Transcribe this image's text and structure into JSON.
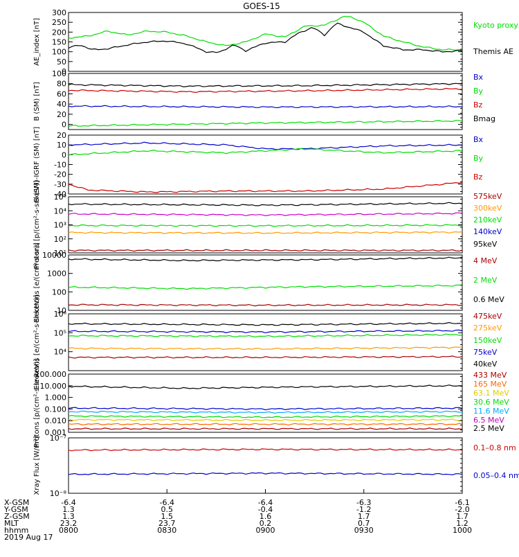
{
  "title": "GOES-15",
  "colors": {
    "black": "#000000",
    "green": "#00dd00",
    "red": "#cc0000",
    "blue": "#0000cc",
    "orange": "#ff9900",
    "yellow": "#ddcc00",
    "cyan": "#00aaff",
    "magenta": "#bb00bb",
    "darkred": "#aa0000"
  },
  "chart_data": [
    {
      "type": "line",
      "ylabel": "AE_index [nT]",
      "ylim": [
        0,
        300
      ],
      "yticks": [
        "0",
        "50",
        "100",
        "150",
        "200",
        "250",
        "300"
      ],
      "series": [
        {
          "name": "Kyoto proxy AE",
          "color": "#00dd00",
          "x": [
            0,
            0.05,
            0.1,
            0.15,
            0.2,
            0.25,
            0.3,
            0.35,
            0.4,
            0.45,
            0.5,
            0.55,
            0.6,
            0.65,
            0.7,
            0.72,
            0.75,
            0.8,
            0.85,
            0.9,
            0.95,
            1.0
          ],
          "values": [
            170,
            180,
            205,
            185,
            205,
            200,
            180,
            150,
            130,
            150,
            190,
            175,
            230,
            235,
            280,
            275,
            250,
            180,
            150,
            125,
            110,
            110
          ]
        },
        {
          "name": "Themis AE",
          "color": "#000000",
          "x": [
            0,
            0.03,
            0.06,
            0.1,
            0.15,
            0.2,
            0.25,
            0.3,
            0.35,
            0.38,
            0.42,
            0.45,
            0.5,
            0.55,
            0.58,
            0.62,
            0.65,
            0.68,
            0.72,
            0.75,
            0.8,
            0.85,
            0.9,
            0.95,
            1.0
          ],
          "values": [
            120,
            135,
            110,
            115,
            135,
            150,
            155,
            140,
            100,
            95,
            135,
            105,
            145,
            150,
            190,
            225,
            185,
            245,
            220,
            200,
            130,
            110,
            110,
            100,
            105
          ]
        }
      ]
    },
    {
      "type": "line",
      "ylabel": "B (SM) [nT]",
      "ylim": [
        -10,
        100
      ],
      "yticks": [
        "0",
        "20",
        "40",
        "60",
        "80",
        "100"
      ],
      "series": [
        {
          "name": "Bx",
          "color": "#0000cc",
          "x": [
            0,
            0.5,
            1.0
          ],
          "values": [
            36,
            34,
            35
          ]
        },
        {
          "name": "By",
          "color": "#00dd00",
          "x": [
            0,
            0.5,
            1.0
          ],
          "values": [
            -3,
            3,
            7
          ]
        },
        {
          "name": "Bz",
          "color": "#cc0000",
          "x": [
            0,
            0.3,
            0.6,
            1.0
          ],
          "values": [
            67,
            64,
            66,
            70
          ]
        },
        {
          "name": "Bmag",
          "color": "#000000",
          "x": [
            0,
            0.3,
            0.6,
            1.0
          ],
          "values": [
            78,
            75,
            76,
            80
          ]
        }
      ]
    },
    {
      "type": "line",
      "ylabel": "B (SM)-IGRF (SM) [nT]",
      "ylim": [
        -40,
        20
      ],
      "yticks": [
        "-40",
        "-30",
        "-20",
        "-10",
        "0",
        "10",
        "20"
      ],
      "series": [
        {
          "name": "Bx",
          "color": "#0000cc",
          "x": [
            0,
            0.2,
            0.4,
            0.5,
            0.6,
            0.8,
            1.0
          ],
          "values": [
            10,
            12,
            10,
            6,
            6,
            9,
            10
          ]
        },
        {
          "name": "By",
          "color": "#00dd00",
          "x": [
            0,
            0.2,
            0.4,
            0.6,
            0.8,
            1.0
          ],
          "values": [
            0,
            4,
            2,
            6,
            2,
            4
          ]
        },
        {
          "name": "Bz",
          "color": "#cc0000",
          "x": [
            0,
            0.05,
            0.2,
            0.4,
            0.6,
            0.8,
            0.95,
            1.0
          ],
          "values": [
            -30,
            -36,
            -38,
            -37,
            -37,
            -35,
            -30,
            -28
          ]
        }
      ]
    },
    {
      "type": "line",
      "ylabel": "Protons [p/(cm²-s-sr-keV)]",
      "ylog": true,
      "ylim": [
        10,
        100000
      ],
      "yticks": [
        "10¹",
        "10²",
        "10³",
        "10⁴",
        "10⁵"
      ],
      "series": [
        {
          "name": "575keV",
          "color": "#000000",
          "x": [
            0,
            0.5,
            1.0
          ],
          "values": [
            30000,
            25000,
            35000
          ]
        },
        {
          "name": "300keV",
          "color": "#cc00cc",
          "x": [
            0,
            0.5,
            1.0
          ],
          "values": [
            6000,
            5000,
            6500
          ]
        },
        {
          "name": "210keV",
          "color": "#00dd00",
          "x": [
            0,
            0.5,
            1.0
          ],
          "values": [
            900,
            850,
            950
          ]
        },
        {
          "name": "140keV",
          "color": "#ff9900",
          "x": [
            0,
            0.5,
            1.0
          ],
          "values": [
            280,
            260,
            300
          ]
        },
        {
          "name": "95keV",
          "color": "#aa0000",
          "x": [
            0,
            0.5,
            1.0
          ],
          "values": [
            15,
            15,
            15
          ]
        }
      ]
    },
    {
      "type": "line",
      "ylabel": "Electrons [e/(cm²-s-sr)]",
      "ylog": true,
      "ylim": [
        10,
        10000
      ],
      "yticks": [
        "10",
        "100",
        "1000",
        "10000"
      ],
      "series": [
        {
          "name": "0.6 MeV",
          "color": "#000000",
          "x": [
            0,
            0.3,
            0.6,
            1.0
          ],
          "values": [
            6000,
            5000,
            5500,
            7000
          ]
        },
        {
          "name": "2 MeV",
          "color": "#00dd00",
          "x": [
            0,
            0.3,
            0.6,
            1.0
          ],
          "values": [
            180,
            150,
            190,
            220
          ]
        },
        {
          "name": "4 MeV",
          "color": "#aa0000",
          "x": [
            0,
            0.5,
            1.0
          ],
          "values": [
            20,
            19,
            20
          ]
        }
      ]
    },
    {
      "type": "line",
      "ylabel": "Electrons [e/(cm²-s-sr-keV)]",
      "ylog": true,
      "ylim": [
        1000,
        1000000
      ],
      "yticks": [
        "10⁴",
        "10⁵",
        "10⁶"
      ],
      "series": [
        {
          "name": "40keV",
          "color": "#000000",
          "x": [
            0,
            0.5,
            1.0
          ],
          "values": [
            300000,
            260000,
            320000
          ]
        },
        {
          "name": "75keV",
          "color": "#0000cc",
          "x": [
            0,
            0.5,
            1.0
          ],
          "values": [
            120000,
            110000,
            130000
          ]
        },
        {
          "name": "150keV",
          "color": "#00dd00",
          "x": [
            0,
            0.5,
            1.0
          ],
          "values": [
            70000,
            65000,
            80000
          ]
        },
        {
          "name": "275keV",
          "color": "#ff9900",
          "x": [
            0,
            0.5,
            1.0
          ],
          "values": [
            15000,
            14000,
            17000
          ]
        },
        {
          "name": "475keV",
          "color": "#aa0000",
          "x": [
            0,
            0.5,
            1.0
          ],
          "values": [
            5000,
            5000,
            5500
          ]
        }
      ]
    },
    {
      "type": "line",
      "ylabel": "Protons [p/(cm²-s-sr-keV)]",
      "ylog": true,
      "ylim": [
        0.001,
        100
      ],
      "yticks": [
        "0.001",
        "0.010",
        "0.100",
        "1.000",
        "10.000",
        "100.000"
      ],
      "series": [
        {
          "name": "2.5 MeV",
          "color": "#000000",
          "x": [
            0,
            0.3,
            0.6,
            1.0
          ],
          "values": [
            9,
            6,
            8,
            10
          ]
        },
        {
          "name": "6.5 MeV",
          "color": "#0000cc",
          "x": [
            0,
            0.5,
            1.0
          ],
          "values": [
            0.12,
            0.1,
            0.12
          ]
        },
        {
          "name": "11.6 MeV",
          "color": "#00aaff",
          "x": [
            0,
            0.5,
            1.0
          ],
          "values": [
            0.06,
            0.05,
            0.06
          ]
        },
        {
          "name": "30.6 MeV",
          "color": "#00dd00",
          "x": [
            0,
            0.5,
            1.0
          ],
          "values": [
            0.025,
            0.02,
            0.025
          ]
        },
        {
          "name": "63.1 MeV",
          "color": "#ddcc00",
          "x": [
            0,
            0.5,
            1.0
          ],
          "values": [
            0.012,
            0.011,
            0.012
          ]
        },
        {
          "name": "165 MeV",
          "color": "#ff6600",
          "x": [
            0,
            0.5,
            1.0
          ],
          "values": [
            0.005,
            0.005,
            0.005
          ]
        },
        {
          "name": "433 MeV",
          "color": "#aa0000",
          "x": [
            0,
            0.5,
            1.0
          ],
          "values": [
            0.002,
            0.002,
            0.002
          ]
        }
      ]
    },
    {
      "type": "line",
      "ylabel": "Xray Flux [W/m²]",
      "ylog": true,
      "ylim": [
        1e-08,
        1e-07
      ],
      "yticks": [
        "10⁻⁸",
        "10⁻⁷"
      ],
      "series": [
        {
          "name": "0.1–0.8 nm",
          "color": "#cc0000",
          "x": [
            0,
            0.5,
            1.0
          ],
          "values": [
            6e-08,
            6.2e-08,
            6.1e-08
          ]
        },
        {
          "name": "0.05–0.4 nm",
          "color": "#0000cc",
          "x": [
            0,
            0.5,
            1.0
          ],
          "values": [
            2.2e-08,
            2.3e-08,
            2.2e-08
          ]
        }
      ]
    }
  ],
  "legend_labels": {
    "p0": [
      "Kyoto proxy AE",
      "Themis AE"
    ],
    "p1": [
      "Bx",
      "By",
      "Bz",
      "Bmag"
    ],
    "p2": [
      "Bx",
      "By",
      "Bz"
    ],
    "p3": [
      "575keV",
      "300keV",
      "210keV",
      "140keV",
      "95keV"
    ],
    "p4": [
      "4 MeV",
      "2 MeV",
      "0.6 MeV"
    ],
    "p5": [
      "475keV",
      "275keV",
      "150keV",
      "75keV",
      "40keV"
    ],
    "p6": [
      "433 MeV",
      "165 MeV",
      "63.1 MeV",
      "30.6 MeV",
      "11.6 MeV",
      "6.5 MeV",
      "2.5 MeV"
    ],
    "p7": [
      "0.1–0.8 nm",
      "0.05–0.4 nm"
    ]
  },
  "xaxis": {
    "row_labels": [
      "X-GSM",
      "Y-GSM",
      "Z-GSM",
      "MLT",
      "hhmm",
      "2019 Aug 17"
    ],
    "columns": [
      {
        "x_gsm": "-6.4",
        "y_gsm": "1.3",
        "z_gsm": "1.3",
        "mlt": "23.2",
        "hhmm": "0800"
      },
      {
        "x_gsm": "-6.4",
        "y_gsm": "0.5",
        "z_gsm": "1.5",
        "mlt": "23.7",
        "hhmm": "0830"
      },
      {
        "x_gsm": "-6.4",
        "y_gsm": "-0.4",
        "z_gsm": "1.6",
        "mlt": "0.2",
        "hhmm": "0900"
      },
      {
        "x_gsm": "-6.3",
        "y_gsm": "-1.2",
        "z_gsm": "1.7",
        "mlt": "0.7",
        "hhmm": "0930"
      },
      {
        "x_gsm": "-6.1",
        "y_gsm": "-2.0",
        "z_gsm": "1.7",
        "mlt": "1.2",
        "hhmm": "1000"
      }
    ]
  }
}
